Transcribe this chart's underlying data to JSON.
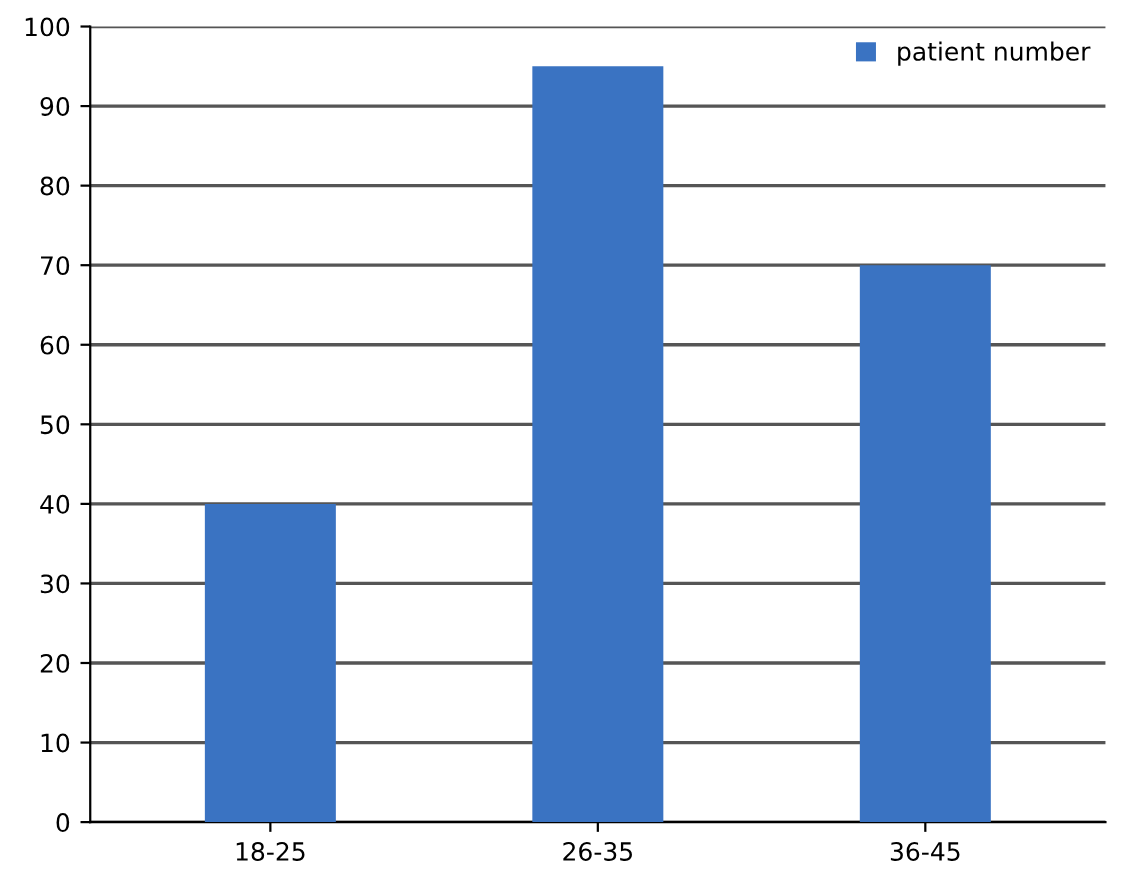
{
  "chart_data": {
    "type": "bar",
    "categories": [
      "18-25",
      "26-35",
      "36-45"
    ],
    "series": [
      {
        "name": "patient number",
        "color": "#3a73c2",
        "values": [
          40,
          95,
          70
        ]
      }
    ],
    "ylim": [
      0,
      100
    ],
    "yticks": [
      0,
      10,
      20,
      30,
      40,
      50,
      60,
      70,
      80,
      90,
      100
    ],
    "grid": "y",
    "legend": "top right"
  }
}
